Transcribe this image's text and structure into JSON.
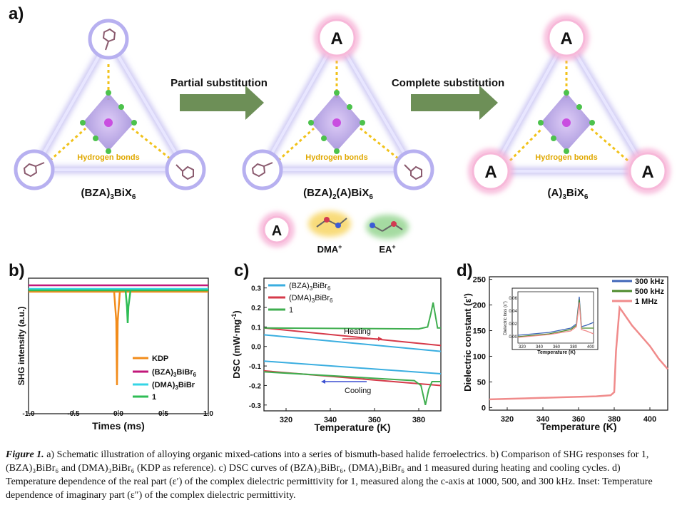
{
  "panel_a": {
    "label": "a)",
    "arrows": [
      "Partial substitution",
      "Complete substitution"
    ],
    "hbond_label": "Hydrogen bonds",
    "a_symbol": "A",
    "formulas": [
      {
        "pre": "(BZA)",
        "sub": "3",
        "mid": "BiX",
        "sub2": "6",
        "a": ""
      },
      {
        "pre": "(BZA)",
        "sub": "2",
        "mid": "(A)BiX",
        "sub2": "6",
        "a": ""
      },
      {
        "pre": "(A)",
        "sub": "3",
        "mid": "BiX",
        "sub2": "6",
        "a": ""
      }
    ],
    "legend_a": "A",
    "dma": "DMA",
    "ea": "EA",
    "plus": "+",
    "colors": {
      "pink": "#f36fb4",
      "lavender": "#a39be6",
      "arrow": "#6d8f57",
      "bond": "#f1c21a"
    }
  },
  "chart_data": [
    {
      "type": "line",
      "panel": "b)",
      "xlabel": "Times (ms)",
      "ylabel": "SHG intensity (a.u.)",
      "xlim": [
        -1.0,
        1.0
      ],
      "xticks": [
        "-1.0",
        "-0.5",
        "0.0",
        "0.5",
        "1.0"
      ],
      "series": [
        {
          "name": "KDP",
          "color": "#f28c1b"
        },
        {
          "name": "(BZA)3BiBr6",
          "color": "#c2177a"
        },
        {
          "name": "(DMA)3BiBr",
          "color": "#35d5e6"
        },
        {
          "name": "1",
          "color": "#2fbd55"
        }
      ]
    },
    {
      "type": "line",
      "panel": "c)",
      "xlabel": "Temperature (K)",
      "ylabel": "DSC (mW·mg-1)",
      "xlim": [
        310,
        390
      ],
      "ylim": [
        -0.33,
        0.35
      ],
      "xticks": [
        320,
        340,
        360,
        380
      ],
      "yticks": [
        "0.3",
        "0.2",
        "0.1",
        "0.0",
        "-0.1",
        "-0.2",
        "-0.3"
      ],
      "annotations": [
        "Heating",
        "Cooling"
      ],
      "series": [
        {
          "name": "(BZA)3BiBr6",
          "color": "#3aaee0",
          "heating": [
            [
              310,
              0.06
            ],
            [
              390,
              -0.025
            ]
          ],
          "cooling": [
            [
              310,
              -0.075
            ],
            [
              390,
              -0.14
            ]
          ]
        },
        {
          "name": "(DMA)3BiBr6",
          "color": "#d63a4a",
          "heating": [
            [
              310,
              0.095
            ],
            [
              390,
              0.005
            ]
          ],
          "cooling": [
            [
              310,
              -0.125
            ],
            [
              390,
              -0.2
            ]
          ]
        },
        {
          "name": "1",
          "color": "#3fae4f",
          "heating_base": 0.095,
          "heating_peak": [
            386.5,
            0.225
          ],
          "cooling_base": -0.13,
          "cooling_peak": [
            383,
            -0.3
          ]
        }
      ]
    },
    {
      "type": "line",
      "panel": "d)",
      "xlabel": "Temperature (K)",
      "ylabel": "Dielectric constant (ε')",
      "xlim": [
        310,
        410
      ],
      "ylim": [
        -5,
        255
      ],
      "xticks": [
        320,
        340,
        360,
        380,
        400
      ],
      "yticks": [
        0,
        50,
        100,
        150,
        200,
        250
      ],
      "series": [
        {
          "name": "300 kHz",
          "color": "#3f66b8"
        },
        {
          "name": "500 kHz",
          "color": "#4c8a2b"
        },
        {
          "name": "1 MHz",
          "color": "#f08b8b",
          "x": [
            310,
            330,
            350,
            370,
            378,
            380,
            381,
            383,
            385,
            390,
            395,
            400,
            405,
            410
          ],
          "y": [
            16,
            18,
            20,
            22,
            24,
            30,
            110,
            195,
            185,
            160,
            140,
            120,
            95,
            75
          ]
        }
      ],
      "inset": {
        "xlabel": "Temperature (K)",
        "ylabel": "Dielectric loss (ε\")",
        "xticks": [
          320,
          340,
          360,
          380,
          400
        ],
        "yticks": [
          "0.06",
          "0.04",
          "0.02",
          "0.00"
        ]
      }
    }
  ],
  "caption": {
    "figure": "Figure 1.",
    "text": " a) Schematic illustration of alloying organic mixed-cations into a series of bismuth-based halide ferroelectrics. b) Comparison of SHG responses for 1, (BZA)₃BiBr₆ and (DMA)₃BiBr₆ (KDP as reference). c) DSC curves of (BZA)₃BiBr₆, (DMA)₃BiBr₆ and 1 measured during heating and cooling cycles. d) Temperature dependence of the real part (ε′) of the complex dielectric permittivity for 1, measured along the c-axis at 1000, 500, and 300 kHz. Inset: Temperature dependence of imaginary part (ε″) of the complex dielectric permittivity."
  }
}
